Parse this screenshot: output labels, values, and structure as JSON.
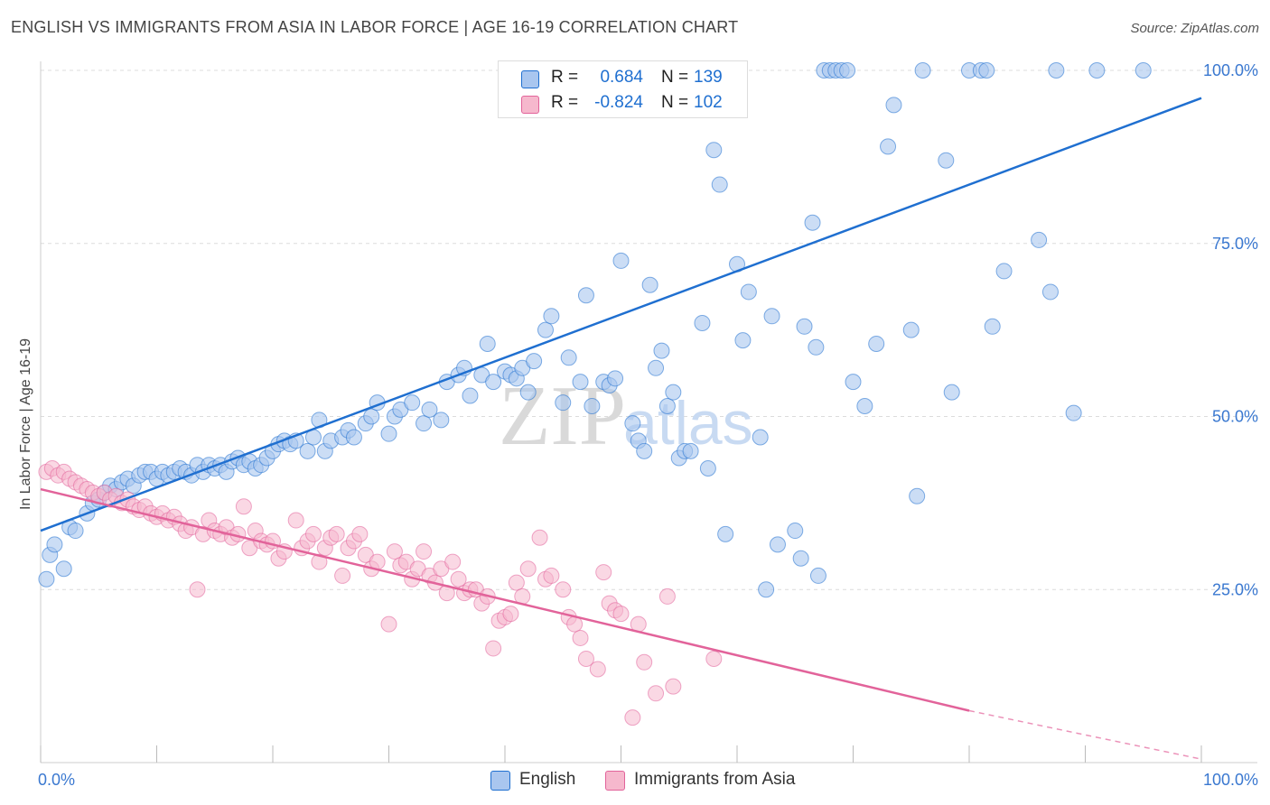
{
  "title": "ENGLISH VS IMMIGRANTS FROM ASIA IN LABOR FORCE | AGE 16-19 CORRELATION CHART",
  "source": "Source: ZipAtlas.com",
  "watermark": {
    "zip": "ZIP",
    "atlas": "atlas"
  },
  "colors": {
    "blue": "#1f6fd0",
    "blue_fill": "#a9c6ef",
    "pink": "#e2639a",
    "pink_fill": "#f6b8cd",
    "axis_text": "#3a78d0",
    "grid": "#dcdcdc"
  },
  "legend": {
    "rows": [
      {
        "r_label": "R =",
        "r_value": "0.684",
        "n_label": "N =",
        "n_value": "139",
        "series": "English"
      },
      {
        "r_label": "R =",
        "r_value": "-0.824",
        "n_label": "N =",
        "n_value": "102",
        "series": "Immigrants from Asia"
      }
    ]
  },
  "bottom_legend": [
    "English",
    "Immigrants from Asia"
  ],
  "chart_data": {
    "type": "scatter",
    "title": "ENGLISH VS IMMIGRANTS FROM ASIA IN LABOR FORCE | AGE 16-19 CORRELATION CHART",
    "xlabel": "",
    "ylabel": "In Labor Force | Age 16-19",
    "x_tick_labels": [
      "0.0%",
      "100.0%"
    ],
    "y_tick_labels": [
      "25.0%",
      "50.0%",
      "75.0%",
      "100.0%"
    ],
    "y_ticks": [
      25,
      50,
      75,
      100
    ],
    "xlim": [
      0,
      100
    ],
    "ylim": [
      0,
      100
    ],
    "grid": true,
    "legend_position": "top-center",
    "series": [
      {
        "name": "English",
        "color": "#1f6fd0",
        "R": 0.684,
        "N": 139,
        "trend": {
          "x": [
            0,
            100
          ],
          "y": [
            33.5,
            96.0
          ]
        },
        "points": [
          [
            0.5,
            26.5
          ],
          [
            0.8,
            30
          ],
          [
            1.2,
            31.5
          ],
          [
            2,
            28
          ],
          [
            2.5,
            34
          ],
          [
            3,
            33.5
          ],
          [
            4,
            36
          ],
          [
            4.5,
            37.5
          ],
          [
            5,
            38
          ],
          [
            5.5,
            39
          ],
          [
            6,
            40
          ],
          [
            6.5,
            39.5
          ],
          [
            7,
            40.5
          ],
          [
            7.5,
            41
          ],
          [
            8,
            40
          ],
          [
            8.5,
            41.5
          ],
          [
            9,
            42
          ],
          [
            9.5,
            42
          ],
          [
            10,
            41
          ],
          [
            10.5,
            42
          ],
          [
            11,
            41.5
          ],
          [
            11.5,
            42
          ],
          [
            12,
            42.5
          ],
          [
            12.5,
            42
          ],
          [
            13,
            41.5
          ],
          [
            13.5,
            43
          ],
          [
            14,
            42
          ],
          [
            14.5,
            43
          ],
          [
            15,
            42.5
          ],
          [
            15.5,
            43
          ],
          [
            16,
            42
          ],
          [
            16.5,
            43.5
          ],
          [
            17,
            44
          ],
          [
            17.5,
            43
          ],
          [
            18,
            43.5
          ],
          [
            18.5,
            42.5
          ],
          [
            19,
            43
          ],
          [
            19.5,
            44
          ],
          [
            20,
            45
          ],
          [
            20.5,
            46
          ],
          [
            21,
            46.5
          ],
          [
            21.5,
            46
          ],
          [
            22,
            46.5
          ],
          [
            23,
            45
          ],
          [
            23.5,
            47
          ],
          [
            24,
            49.5
          ],
          [
            24.5,
            45
          ],
          [
            25,
            46.5
          ],
          [
            26,
            47
          ],
          [
            26.5,
            48
          ],
          [
            27,
            47
          ],
          [
            28,
            49
          ],
          [
            28.5,
            50
          ],
          [
            29,
            52
          ],
          [
            30,
            47.5
          ],
          [
            30.5,
            50
          ],
          [
            31,
            51
          ],
          [
            32,
            52
          ],
          [
            33,
            49
          ],
          [
            33.5,
            51
          ],
          [
            34.5,
            49.5
          ],
          [
            35,
            55
          ],
          [
            36,
            56
          ],
          [
            36.5,
            57
          ],
          [
            37,
            53
          ],
          [
            38,
            56
          ],
          [
            38.5,
            60.5
          ],
          [
            39,
            55
          ],
          [
            40,
            56.5
          ],
          [
            40.5,
            56
          ],
          [
            41,
            55.5
          ],
          [
            41.5,
            57
          ],
          [
            42,
            53.5
          ],
          [
            42.5,
            58
          ],
          [
            43.5,
            62.5
          ],
          [
            44,
            64.5
          ],
          [
            45,
            52
          ],
          [
            45.5,
            58.5
          ],
          [
            46.5,
            55
          ],
          [
            47,
            67.5
          ],
          [
            47.5,
            51.5
          ],
          [
            48.5,
            55
          ],
          [
            49,
            54.5
          ],
          [
            49.5,
            55.5
          ],
          [
            50,
            72.5
          ],
          [
            51,
            49
          ],
          [
            51.5,
            46.5
          ],
          [
            52,
            45
          ],
          [
            52.5,
            69
          ],
          [
            53,
            57
          ],
          [
            53.5,
            59.5
          ],
          [
            54,
            51.5
          ],
          [
            54.5,
            53.5
          ],
          [
            55,
            44
          ],
          [
            55.5,
            45
          ],
          [
            56,
            45
          ],
          [
            57,
            63.5
          ],
          [
            57.5,
            42.5
          ],
          [
            58,
            88.5
          ],
          [
            58.5,
            83.5
          ],
          [
            59,
            33
          ],
          [
            60,
            72
          ],
          [
            60.5,
            61
          ],
          [
            61,
            68
          ],
          [
            62,
            47
          ],
          [
            62.5,
            25
          ],
          [
            63,
            64.5
          ],
          [
            63.5,
            31.5
          ],
          [
            65,
            33.5
          ],
          [
            65.5,
            29.5
          ],
          [
            65.8,
            63
          ],
          [
            66.5,
            78
          ],
          [
            66.8,
            60
          ],
          [
            67,
            27
          ],
          [
            67.5,
            100
          ],
          [
            68,
            100
          ],
          [
            68.5,
            100
          ],
          [
            69,
            100
          ],
          [
            69.5,
            100
          ],
          [
            70,
            55
          ],
          [
            71,
            51.5
          ],
          [
            72,
            60.5
          ],
          [
            73,
            89
          ],
          [
            73.5,
            95
          ],
          [
            75,
            62.5
          ],
          [
            75.5,
            38.5
          ],
          [
            76,
            100
          ],
          [
            78,
            87
          ],
          [
            78.5,
            53.5
          ],
          [
            80,
            100
          ],
          [
            81,
            100
          ],
          [
            81.5,
            100
          ],
          [
            82,
            63
          ],
          [
            83,
            71
          ],
          [
            86,
            75.5
          ],
          [
            87,
            68
          ],
          [
            87.5,
            100
          ],
          [
            89,
            50.5
          ],
          [
            91,
            100
          ],
          [
            95,
            100
          ]
        ]
      },
      {
        "name": "Immigrants from Asia",
        "color": "#e2639a",
        "R": -0.824,
        "N": 102,
        "trend": {
          "x": [
            0,
            80
          ],
          "y": [
            39.5,
            7.5
          ]
        },
        "trend_dashed": {
          "x": [
            80,
            100
          ],
          "y": [
            7.5,
            0.5
          ]
        },
        "points": [
          [
            0.5,
            42
          ],
          [
            1,
            42.5
          ],
          [
            1.5,
            41.5
          ],
          [
            2,
            42
          ],
          [
            2.5,
            41
          ],
          [
            3,
            40.5
          ],
          [
            3.5,
            40
          ],
          [
            4,
            39.5
          ],
          [
            4.5,
            39
          ],
          [
            5,
            38.5
          ],
          [
            5.5,
            39
          ],
          [
            6,
            38
          ],
          [
            6.5,
            38.5
          ],
          [
            7,
            37.5
          ],
          [
            7.5,
            38
          ],
          [
            8,
            37
          ],
          [
            8.5,
            36.5
          ],
          [
            9,
            37
          ],
          [
            9.5,
            36
          ],
          [
            10,
            35.5
          ],
          [
            10.5,
            36
          ],
          [
            11,
            35
          ],
          [
            11.5,
            35.5
          ],
          [
            12,
            34.5
          ],
          [
            12.5,
            33.5
          ],
          [
            13,
            34
          ],
          [
            13.5,
            25
          ],
          [
            14,
            33
          ],
          [
            14.5,
            35
          ],
          [
            15,
            33.5
          ],
          [
            15.5,
            33
          ],
          [
            16,
            34
          ],
          [
            16.5,
            32.5
          ],
          [
            17,
            33
          ],
          [
            17.5,
            37
          ],
          [
            18,
            31
          ],
          [
            18.5,
            33.5
          ],
          [
            19,
            32
          ],
          [
            19.5,
            31.5
          ],
          [
            20,
            32
          ],
          [
            20.5,
            29.5
          ],
          [
            21,
            30.5
          ],
          [
            22,
            35
          ],
          [
            22.5,
            31
          ],
          [
            23,
            32
          ],
          [
            23.5,
            33
          ],
          [
            24,
            29
          ],
          [
            24.5,
            31
          ],
          [
            25,
            32.5
          ],
          [
            25.5,
            33
          ],
          [
            26,
            27
          ],
          [
            26.5,
            31
          ],
          [
            27,
            32
          ],
          [
            27.5,
            33
          ],
          [
            28,
            30
          ],
          [
            28.5,
            28
          ],
          [
            29,
            29
          ],
          [
            30,
            20
          ],
          [
            30.5,
            30.5
          ],
          [
            31,
            28.5
          ],
          [
            31.5,
            29
          ],
          [
            32,
            26.5
          ],
          [
            32.5,
            28
          ],
          [
            33,
            30.5
          ],
          [
            33.5,
            27
          ],
          [
            34,
            26
          ],
          [
            34.5,
            28
          ],
          [
            35,
            24.5
          ],
          [
            35.5,
            29
          ],
          [
            36,
            26.5
          ],
          [
            36.5,
            24.5
          ],
          [
            37,
            25
          ],
          [
            37.5,
            25
          ],
          [
            38,
            23
          ],
          [
            38.5,
            24
          ],
          [
            39,
            16.5
          ],
          [
            39.5,
            20.5
          ],
          [
            40,
            21
          ],
          [
            40.5,
            21.5
          ],
          [
            41,
            26
          ],
          [
            41.5,
            24
          ],
          [
            42,
            28
          ],
          [
            43,
            32.5
          ],
          [
            43.5,
            26.5
          ],
          [
            44,
            27
          ],
          [
            45,
            25
          ],
          [
            45.5,
            21
          ],
          [
            46,
            20
          ],
          [
            46.5,
            18
          ],
          [
            47,
            15
          ],
          [
            48,
            13.5
          ],
          [
            48.5,
            27.5
          ],
          [
            49,
            23
          ],
          [
            49.5,
            22
          ],
          [
            50,
            21.5
          ],
          [
            51,
            6.5
          ],
          [
            51.5,
            20
          ],
          [
            52,
            14.5
          ],
          [
            53,
            10
          ],
          [
            54,
            24
          ],
          [
            54.5,
            11
          ],
          [
            58,
            15
          ]
        ]
      }
    ]
  }
}
